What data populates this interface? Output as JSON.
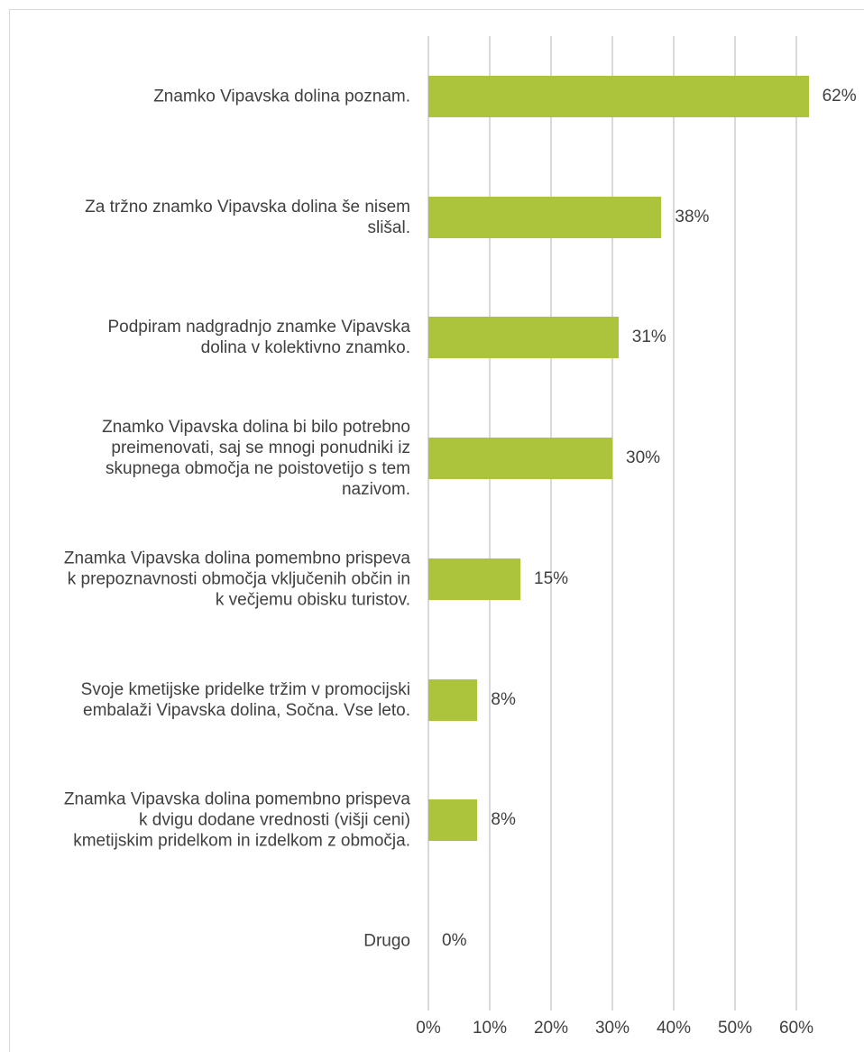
{
  "chart_data": {
    "type": "barh",
    "categories": [
      "Znamko Vipavska dolina poznam.",
      "Za tržno znamko Vipavska dolina še nisem slišal.",
      "Podpiram nadgradnjo znamke Vipavska dolina v kolektivno znamko.",
      "Znamko Vipavska dolina bi bilo potrebno preimenovati, saj se mnogi ponudniki iz skupnega območja ne poistovetijo s tem nazivom.",
      "Znamka Vipavska dolina pomembno prispeva k prepoznavnosti območja vključenih občin in k večjemu obisku turistov.",
      "Svoje kmetijske pridelke tržim v promocijski embalaži Vipavska dolina, Sočna. Vse leto.",
      "Znamka Vipavska dolina pomembno prispeva k dvigu dodane vrednosti (višji ceni) kmetijskim pridelkom in izdelkom z območja.",
      "Drugo"
    ],
    "values": [
      62,
      38,
      31,
      30,
      15,
      8,
      8,
      0
    ],
    "value_labels": [
      "62%",
      "38%",
      "31%",
      "30%",
      "15%",
      "8%",
      "8%",
      "0%"
    ],
    "color": "#abc43c",
    "xlim": [
      0,
      60
    ],
    "xticks": [
      {
        "value": 0,
        "label": "0%"
      },
      {
        "value": 10,
        "label": "10%"
      },
      {
        "value": 20,
        "label": "20%"
      },
      {
        "value": 30,
        "label": "30%"
      },
      {
        "value": 40,
        "label": "40%"
      },
      {
        "value": 50,
        "label": "50%"
      },
      {
        "value": 60,
        "label": "60%"
      }
    ],
    "grid": true
  }
}
